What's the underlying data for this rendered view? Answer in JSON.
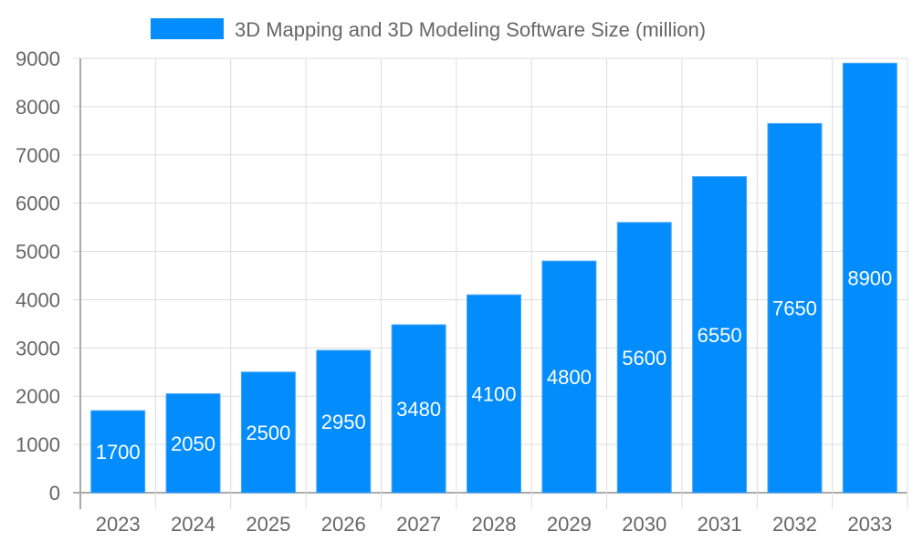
{
  "chart_data": {
    "type": "bar",
    "title": "",
    "xlabel": "",
    "ylabel": "",
    "categories": [
      "2023",
      "2024",
      "2025",
      "2026",
      "2027",
      "2028",
      "2029",
      "2030",
      "2031",
      "2032",
      "2033"
    ],
    "series": [
      {
        "name": "3D Mapping and 3D Modeling Software Size (million)",
        "values": [
          1700,
          2050,
          2500,
          2950,
          3480,
          4100,
          4800,
          5600,
          6550,
          7650,
          8900
        ],
        "color": "#038cfc"
      }
    ],
    "ylim": [
      0,
      9000
    ],
    "yticks": [
      "0",
      "1000",
      "2000",
      "3000",
      "4000",
      "5000",
      "6000",
      "7000",
      "8000",
      "9000"
    ],
    "grid": true,
    "legend": "top",
    "data_labels": true
  }
}
